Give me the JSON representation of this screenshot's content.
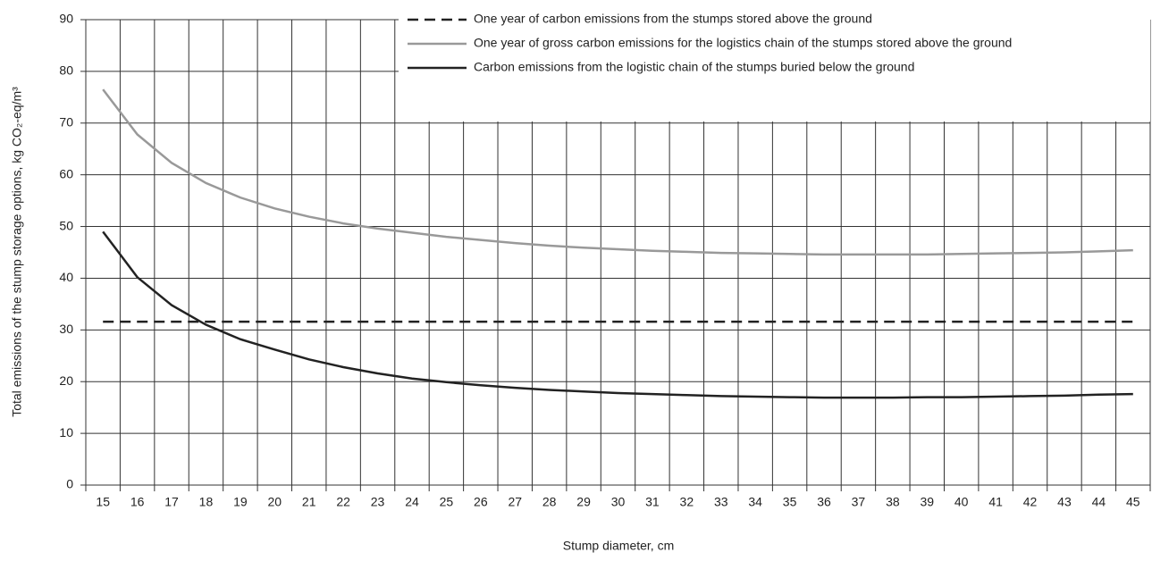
{
  "chart_data": {
    "type": "line",
    "x_label": "Stump diameter, cm",
    "y_label": "Total emissions of the stump storage options, kg CO₂-eq/m³",
    "categories": [
      "15",
      "16",
      "17",
      "18",
      "19",
      "20",
      "21",
      "22",
      "23",
      "24",
      "25",
      "26",
      "27",
      "28",
      "29",
      "30",
      "31",
      "32",
      "33",
      "34",
      "35",
      "36",
      "37",
      "38",
      "39",
      "40",
      "41",
      "42",
      "43",
      "44",
      "45"
    ],
    "series": [
      {
        "name": "One year of carbon emissions from the stumps stored above the ground",
        "color": "#222222",
        "dashed": true,
        "values": [
          31.6,
          31.6,
          31.6,
          31.6,
          31.6,
          31.6,
          31.6,
          31.6,
          31.6,
          31.6,
          31.6,
          31.6,
          31.6,
          31.6,
          31.6,
          31.6,
          31.6,
          31.6,
          31.6,
          31.6,
          31.6,
          31.6,
          31.6,
          31.6,
          31.6,
          31.6,
          31.6,
          31.6,
          31.6,
          31.6,
          31.6
        ]
      },
      {
        "name": "One year of gross carbon emissions for the logistics chain of the stumps stored above the ground",
        "color": "#999999",
        "dashed": false,
        "values": [
          76.5,
          67.8,
          62.3,
          58.4,
          55.6,
          53.5,
          51.9,
          50.6,
          49.6,
          48.8,
          48.0,
          47.4,
          46.8,
          46.3,
          45.9,
          45.6,
          45.3,
          45.1,
          44.9,
          44.8,
          44.7,
          44.6,
          44.6,
          44.6,
          44.6,
          44.7,
          44.8,
          44.9,
          45.0,
          45.2,
          45.4
        ]
      },
      {
        "name": "Carbon emissions from the logistic chain of the stumps buried below the ground",
        "color": "#222222",
        "dashed": false,
        "values": [
          49.0,
          40.2,
          34.8,
          31.0,
          28.2,
          26.2,
          24.3,
          22.8,
          21.6,
          20.6,
          19.9,
          19.3,
          18.8,
          18.4,
          18.1,
          17.8,
          17.6,
          17.4,
          17.2,
          17.1,
          17.0,
          16.9,
          16.9,
          16.9,
          17.0,
          17.0,
          17.1,
          17.2,
          17.3,
          17.5,
          17.6
        ]
      }
    ],
    "ylim": [
      0,
      90
    ],
    "yticks": [
      0,
      10,
      20,
      30,
      40,
      50,
      60,
      70,
      80,
      90
    ],
    "grid": true
  }
}
